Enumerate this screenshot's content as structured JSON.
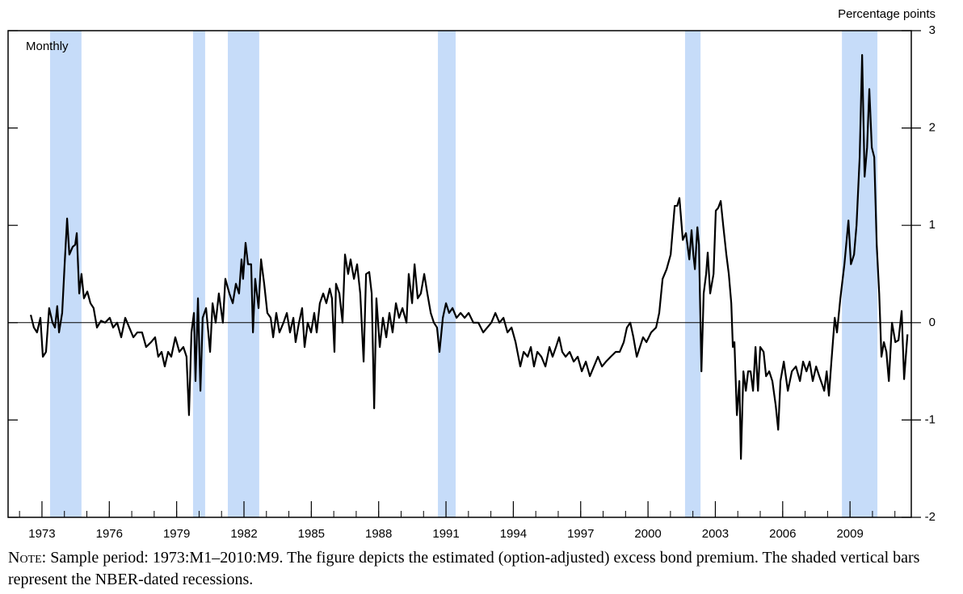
{
  "chart_data": {
    "type": "line",
    "y_label": "Percentage points",
    "annotation": "Monthly",
    "note_label": "Note:",
    "note": "Sample period: 1973:M1–2010:M9. The figure depicts the estimated (option-adjusted) excess bond premium. The shaded vertical bars represent the NBER-dated recessions.",
    "color": "#000000",
    "shade_color": "#c6dcf9",
    "shaded_periods": [
      [
        1973.36,
        1974.76
      ],
      [
        1979.73,
        1980.27
      ],
      [
        1981.28,
        1982.68
      ],
      [
        1990.64,
        1991.43
      ],
      [
        2001.65,
        2002.34
      ],
      [
        2008.64,
        2010.22
      ]
    ],
    "xlim": [
      1971.49,
      2011.73
    ],
    "xticks": [
      1973,
      1976,
      1979,
      1982,
      1985,
      1988,
      1991,
      1994,
      1997,
      2000,
      2003,
      2006,
      2009
    ],
    "xminorticks": [
      1972,
      1973,
      1974,
      1975,
      1976,
      1977,
      1978,
      1979,
      1980,
      1981,
      1982,
      1983,
      1984,
      1985,
      1986,
      1987,
      1988,
      1989,
      1990,
      1991,
      1992,
      1993,
      1994,
      1995,
      1996,
      1997,
      1998,
      1999,
      2000,
      2001,
      2002,
      2003,
      2004,
      2005,
      2006,
      2007,
      2008,
      2009,
      2010,
      2011
    ],
    "ylim": [
      -2,
      3
    ],
    "yticks": [
      -2,
      -1,
      0,
      1,
      2,
      3
    ],
    "zero_line": true,
    "x": [
      1972.5,
      1972.64,
      1972.78,
      1972.93,
      1973.04,
      1973.18,
      1973.32,
      1973.47,
      1973.58,
      1973.68,
      1973.76,
      1973.9,
      1974.01,
      1974.12,
      1974.22,
      1974.37,
      1974.48,
      1974.55,
      1974.66,
      1974.76,
      1974.87,
      1975.02,
      1975.16,
      1975.3,
      1975.45,
      1975.63,
      1975.81,
      1976.02,
      1976.17,
      1976.35,
      1976.53,
      1976.71,
      1976.89,
      1977.07,
      1977.25,
      1977.46,
      1977.64,
      1977.86,
      1978.04,
      1978.18,
      1978.33,
      1978.47,
      1978.62,
      1978.76,
      1978.94,
      1979.12,
      1979.3,
      1979.44,
      1979.55,
      1979.66,
      1979.77,
      1979.84,
      1979.95,
      1980.06,
      1980.16,
      1980.31,
      1980.49,
      1980.6,
      1980.74,
      1980.88,
      1981.06,
      1981.17,
      1981.35,
      1981.5,
      1981.64,
      1981.78,
      1981.89,
      1981.96,
      1982.07,
      1982.18,
      1982.32,
      1982.4,
      1982.5,
      1982.65,
      1982.76,
      1982.9,
      1983.04,
      1983.19,
      1983.3,
      1983.44,
      1983.58,
      1983.76,
      1983.91,
      1984.05,
      1984.2,
      1984.3,
      1984.45,
      1984.59,
      1984.7,
      1984.84,
      1984.99,
      1985.13,
      1985.24,
      1985.38,
      1985.53,
      1985.67,
      1985.82,
      1985.92,
      1986.03,
      1986.1,
      1986.25,
      1986.39,
      1986.5,
      1986.64,
      1986.75,
      1986.9,
      1987.04,
      1987.18,
      1987.33,
      1987.44,
      1987.58,
      1987.69,
      1987.8,
      1987.9,
      1988.05,
      1988.19,
      1988.34,
      1988.48,
      1988.62,
      1988.77,
      1988.91,
      1989.06,
      1989.24,
      1989.34,
      1989.49,
      1989.6,
      1989.74,
      1989.88,
      1990.03,
      1990.17,
      1990.32,
      1990.46,
      1990.6,
      1990.71,
      1990.86,
      1991.0,
      1991.14,
      1991.29,
      1991.47,
      1991.65,
      1991.83,
      1992.01,
      1992.22,
      1992.44,
      1992.66,
      1992.84,
      1993.02,
      1993.2,
      1993.38,
      1993.56,
      1993.74,
      1993.92,
      1994.1,
      1994.31,
      1994.46,
      1994.64,
      1994.78,
      1994.92,
      1995.07,
      1995.25,
      1995.43,
      1995.61,
      1995.75,
      1995.9,
      1996.04,
      1996.18,
      1996.33,
      1996.51,
      1996.69,
      1996.87,
      1997.05,
      1997.23,
      1997.41,
      1997.59,
      1997.77,
      1997.95,
      1998.13,
      1998.34,
      1998.56,
      1998.74,
      1998.92,
      1999.06,
      1999.21,
      1999.35,
      1999.5,
      1999.64,
      1999.78,
      1999.93,
      2000.14,
      2000.36,
      2000.5,
      2000.65,
      2000.83,
      2001.01,
      2001.19,
      2001.3,
      2001.4,
      2001.55,
      2001.69,
      2001.84,
      2001.94,
      2002.02,
      2002.09,
      2002.2,
      2002.27,
      2002.38,
      2002.48,
      2002.59,
      2002.66,
      2002.77,
      2002.92,
      2003.02,
      2003.13,
      2003.24,
      2003.35,
      2003.49,
      2003.6,
      2003.71,
      2003.78,
      2003.85,
      2003.96,
      2004.07,
      2004.14,
      2004.25,
      2004.36,
      2004.46,
      2004.57,
      2004.68,
      2004.79,
      2004.9,
      2005.0,
      2005.15,
      2005.26,
      2005.4,
      2005.54,
      2005.69,
      2005.8,
      2005.9,
      2006.05,
      2006.23,
      2006.41,
      2006.59,
      2006.77,
      2006.91,
      2007.06,
      2007.2,
      2007.34,
      2007.49,
      2007.63,
      2007.78,
      2007.85,
      2007.96,
      2008.06,
      2008.17,
      2008.32,
      2008.42,
      2008.57,
      2008.75,
      2008.93,
      2009.04,
      2009.18,
      2009.29,
      2009.43,
      2009.54,
      2009.65,
      2009.76,
      2009.86,
      2009.97,
      2010.08,
      2010.19,
      2010.3,
      2010.4,
      2010.51,
      2010.62,
      2010.73,
      2010.87,
      2011.02,
      2011.16,
      2011.3,
      2011.41,
      2011.56
    ],
    "values": [
      0.08,
      -0.05,
      -0.1,
      0.05,
      -0.35,
      -0.3,
      0.15,
      0.0,
      -0.05,
      0.17,
      -0.1,
      0.1,
      0.6,
      1.07,
      0.7,
      0.78,
      0.8,
      0.92,
      0.3,
      0.5,
      0.25,
      0.32,
      0.2,
      0.15,
      -0.05,
      0.02,
      0.0,
      0.05,
      -0.05,
      0.0,
      -0.15,
      0.05,
      -0.05,
      -0.15,
      -0.1,
      -0.1,
      -0.25,
      -0.2,
      -0.15,
      -0.35,
      -0.3,
      -0.45,
      -0.3,
      -0.35,
      -0.15,
      -0.3,
      -0.25,
      -0.35,
      -0.95,
      -0.1,
      0.1,
      -0.6,
      0.25,
      -0.7,
      0.05,
      0.15,
      -0.3,
      0.2,
      0.0,
      0.3,
      0.0,
      0.45,
      0.3,
      0.2,
      0.4,
      0.3,
      0.65,
      0.45,
      0.82,
      0.6,
      0.6,
      -0.1,
      0.45,
      0.15,
      0.65,
      0.4,
      0.1,
      0.05,
      -0.15,
      0.1,
      -0.1,
      0.0,
      0.1,
      -0.1,
      0.05,
      -0.2,
      0.0,
      0.15,
      -0.25,
      0.0,
      -0.1,
      0.1,
      -0.1,
      0.2,
      0.3,
      0.2,
      0.35,
      0.25,
      -0.3,
      0.4,
      0.3,
      0.0,
      0.7,
      0.5,
      0.65,
      0.45,
      0.6,
      0.3,
      -0.4,
      0.5,
      0.52,
      0.3,
      -0.88,
      0.25,
      -0.25,
      0.05,
      -0.15,
      0.1,
      -0.1,
      0.2,
      0.05,
      0.15,
      0.0,
      0.5,
      0.2,
      0.6,
      0.25,
      0.3,
      0.5,
      0.3,
      0.1,
      0.0,
      -0.05,
      -0.3,
      0.05,
      0.2,
      0.1,
      0.15,
      0.05,
      0.1,
      0.05,
      0.1,
      0.0,
      0.0,
      -0.1,
      -0.05,
      0.0,
      0.1,
      0.0,
      0.05,
      -0.1,
      -0.05,
      -0.2,
      -0.45,
      -0.3,
      -0.35,
      -0.25,
      -0.45,
      -0.3,
      -0.35,
      -0.45,
      -0.25,
      -0.35,
      -0.25,
      -0.15,
      -0.3,
      -0.35,
      -0.3,
      -0.4,
      -0.35,
      -0.5,
      -0.4,
      -0.55,
      -0.45,
      -0.35,
      -0.45,
      -0.4,
      -0.35,
      -0.3,
      -0.3,
      -0.2,
      -0.05,
      0.0,
      -0.15,
      -0.35,
      -0.25,
      -0.15,
      -0.2,
      -0.1,
      -0.05,
      0.1,
      0.45,
      0.55,
      0.7,
      1.2,
      1.2,
      1.28,
      0.85,
      0.92,
      0.65,
      0.95,
      0.7,
      0.55,
      0.98,
      0.8,
      -0.5,
      0.3,
      0.5,
      0.72,
      0.3,
      0.5,
      1.15,
      1.18,
      1.25,
      1.0,
      0.7,
      0.5,
      0.2,
      -0.25,
      -0.2,
      -0.95,
      -0.6,
      -1.4,
      -0.5,
      -0.7,
      -0.5,
      -0.5,
      -0.7,
      -0.25,
      -0.7,
      -0.25,
      -0.3,
      -0.55,
      -0.5,
      -0.6,
      -0.85,
      -1.1,
      -0.6,
      -0.4,
      -0.7,
      -0.5,
      -0.45,
      -0.6,
      -0.4,
      -0.5,
      -0.4,
      -0.6,
      -0.45,
      -0.55,
      -0.65,
      -0.7,
      -0.5,
      -0.75,
      -0.4,
      0.05,
      -0.1,
      0.25,
      0.6,
      1.05,
      0.6,
      0.7,
      1.0,
      1.7,
      2.75,
      1.5,
      1.8,
      2.4,
      1.8,
      1.7,
      0.8,
      0.3,
      -0.35,
      -0.2,
      -0.3,
      -0.6,
      0.0,
      -0.2,
      -0.18,
      0.12,
      -0.58,
      -0.12
    ]
  }
}
